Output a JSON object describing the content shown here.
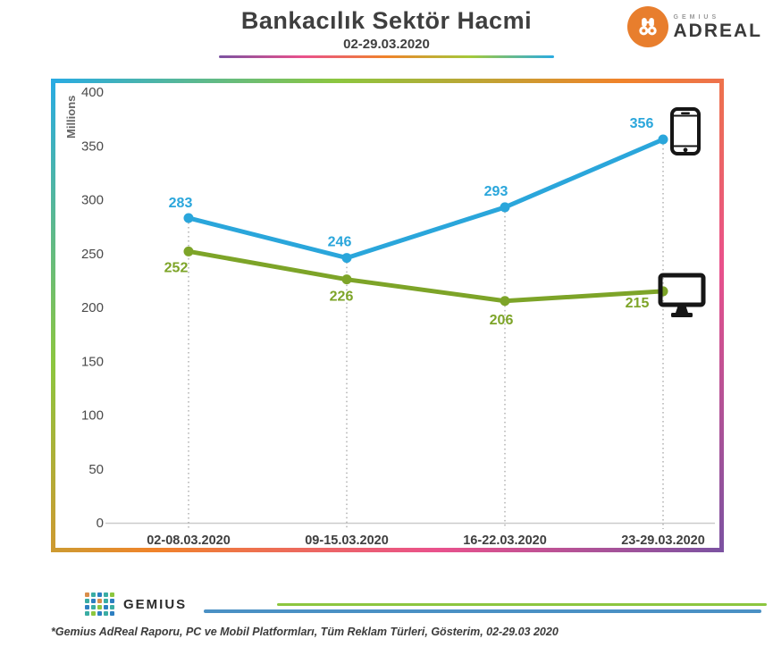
{
  "header": {
    "title": "Bankacılık Sektör Hacmi",
    "subtitle": "02-29.03.2020"
  },
  "adreal_logo": {
    "brand_top": "GEMIUS",
    "brand_main": "ADREAL",
    "circle_color": "#E87E2D"
  },
  "chart_data": {
    "type": "line",
    "title": "Bankacılık Sektör Hacmi",
    "subtitle": "02-29.03.2020",
    "ylabel": "Millions",
    "ylim": [
      0,
      400
    ],
    "yticks": [
      400,
      350,
      300,
      250,
      200,
      150,
      100,
      50,
      0
    ],
    "categories": [
      "02-08.03.2020",
      "09-15.03.2020",
      "16-22.03.2020",
      "23-29.03.2020"
    ],
    "series": [
      {
        "name": "Mobil",
        "icon": "smartphone-icon",
        "color": "#2AA6DB",
        "values": [
          283,
          246,
          293,
          356
        ]
      },
      {
        "name": "PC",
        "icon": "desktop-monitor-icon",
        "color": "#7DA428",
        "values": [
          252,
          226,
          206,
          215
        ]
      }
    ],
    "grid": "vertical-dotted-per-category",
    "legend_position": "right-device-icons"
  },
  "frame_colors": [
    "#29ABE2",
    "#8CC63F",
    "#F0832A",
    "#E9518C",
    "#7C52A1"
  ],
  "title_underline_colors": [
    "#7C52A1",
    "#E9518C",
    "#F0832A",
    "#A4C93A",
    "#29ABE2"
  ],
  "footer": {
    "gemius_wordmark": "GEMIUS",
    "footnote": "*Gemius AdReal Raporu, PC ve Mobil Platformları, Tüm Reklam Türleri, Gösterim, 02-29.03 2020",
    "line_colors": [
      "#8CC63F",
      "#4A90C4"
    ]
  }
}
